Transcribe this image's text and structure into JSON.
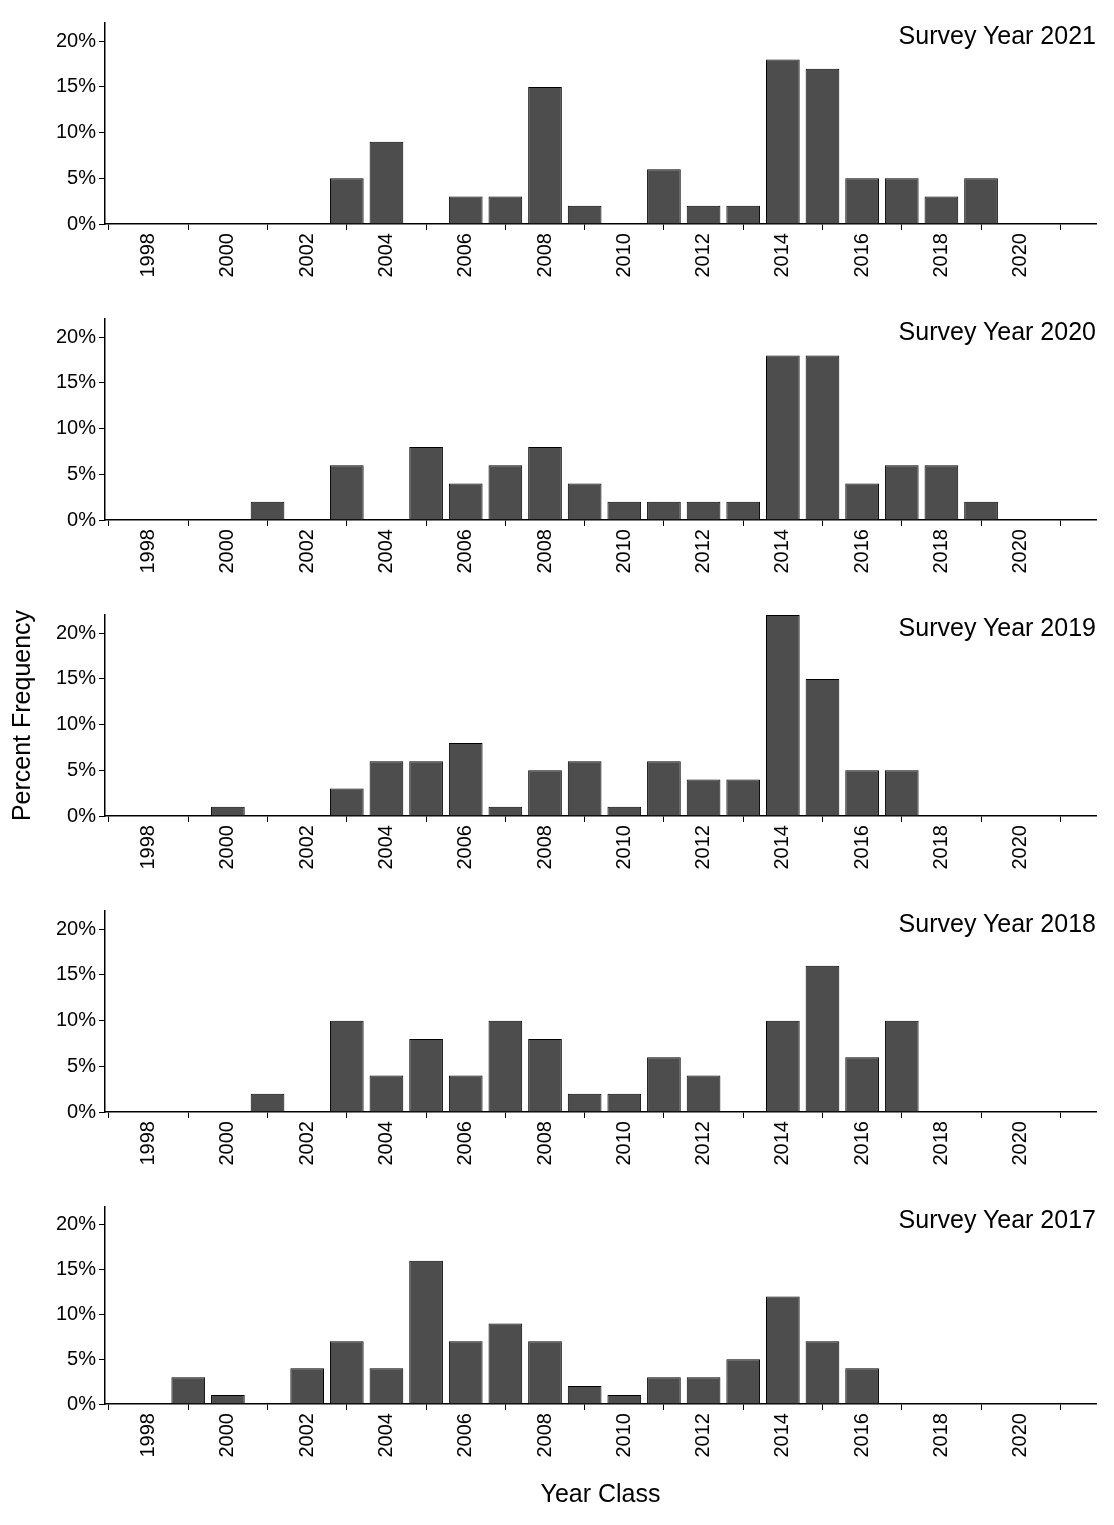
{
  "chart_data": [
    {
      "type": "bar",
      "title": "Survey Year 2021",
      "x": [
        2003,
        2004,
        2006,
        2007,
        2008,
        2009,
        2011,
        2012,
        2013,
        2014,
        2015,
        2016,
        2017,
        2018,
        2019
      ],
      "values": [
        5,
        9,
        3,
        3,
        15,
        2,
        6,
        2,
        2,
        18,
        17,
        5,
        5,
        3,
        5
      ],
      "color": "#4d4d4d",
      "xlim": [
        1996.9,
        2021.9
      ],
      "xticks": [
        1998,
        2000,
        2002,
        2004,
        2006,
        2008,
        2010,
        2012,
        2014,
        2016,
        2018,
        2020
      ],
      "ylim": [
        0,
        22
      ],
      "yticks": [
        {
          "value": 0,
          "label": "0%"
        },
        {
          "value": 5,
          "label": "5%"
        },
        {
          "value": 10,
          "label": "10%"
        },
        {
          "value": 15,
          "label": "15%"
        },
        {
          "value": 20,
          "label": "20%"
        }
      ]
    },
    {
      "type": "bar",
      "title": "Survey Year 2020",
      "x": [
        2001,
        2003,
        2005,
        2006,
        2007,
        2008,
        2009,
        2010,
        2011,
        2012,
        2013,
        2014,
        2015,
        2016,
        2017,
        2018,
        2019
      ],
      "values": [
        2,
        6,
        8,
        4,
        6,
        8,
        4,
        2,
        2,
        2,
        2,
        18,
        18,
        4,
        6,
        6,
        2
      ],
      "color": "#4d4d4d",
      "xlim": [
        1996.9,
        2021.9
      ],
      "xticks": [
        1998,
        2000,
        2002,
        2004,
        2006,
        2008,
        2010,
        2012,
        2014,
        2016,
        2018,
        2020
      ],
      "ylim": [
        0,
        22
      ],
      "yticks": [
        {
          "value": 0,
          "label": "0%"
        },
        {
          "value": 5,
          "label": "5%"
        },
        {
          "value": 10,
          "label": "10%"
        },
        {
          "value": 15,
          "label": "15%"
        },
        {
          "value": 20,
          "label": "20%"
        }
      ]
    },
    {
      "type": "bar",
      "title": "Survey Year 2019",
      "ylabel": "Percent Frequency",
      "x": [
        2000,
        2003,
        2004,
        2005,
        2006,
        2007,
        2008,
        2009,
        2010,
        2011,
        2012,
        2013,
        2014,
        2015,
        2016,
        2017
      ],
      "values": [
        1,
        3,
        6,
        6,
        8,
        1,
        5,
        6,
        1,
        6,
        4,
        4,
        22,
        15,
        5,
        5
      ],
      "color": "#4d4d4d",
      "xlim": [
        1996.9,
        2021.9
      ],
      "xticks": [
        1998,
        2000,
        2002,
        2004,
        2006,
        2008,
        2010,
        2012,
        2014,
        2016,
        2018,
        2020
      ],
      "ylim": [
        0,
        22
      ],
      "yticks": [
        {
          "value": 0,
          "label": "0%"
        },
        {
          "value": 5,
          "label": "5%"
        },
        {
          "value": 10,
          "label": "10%"
        },
        {
          "value": 15,
          "label": "15%"
        },
        {
          "value": 20,
          "label": "20%"
        }
      ]
    },
    {
      "type": "bar",
      "title": "Survey Year 2018",
      "x": [
        2001,
        2003,
        2004,
        2005,
        2006,
        2007,
        2008,
        2009,
        2010,
        2011,
        2012,
        2014,
        2015,
        2016,
        2017
      ],
      "values": [
        2,
        10,
        4,
        8,
        4,
        10,
        8,
        2,
        2,
        6,
        4,
        10,
        16,
        6,
        10
      ],
      "color": "#4d4d4d",
      "xlim": [
        1996.9,
        2021.9
      ],
      "xticks": [
        1998,
        2000,
        2002,
        2004,
        2006,
        2008,
        2010,
        2012,
        2014,
        2016,
        2018,
        2020
      ],
      "ylim": [
        0,
        22
      ],
      "yticks": [
        {
          "value": 0,
          "label": "0%"
        },
        {
          "value": 5,
          "label": "5%"
        },
        {
          "value": 10,
          "label": "10%"
        },
        {
          "value": 15,
          "label": "15%"
        },
        {
          "value": 20,
          "label": "20%"
        }
      ]
    },
    {
      "type": "bar",
      "title": "Survey Year 2017",
      "xlabel": "Year Class",
      "x": [
        1999,
        2000,
        2002,
        2003,
        2004,
        2005,
        2006,
        2007,
        2008,
        2009,
        2010,
        2011,
        2012,
        2013,
        2014,
        2015,
        2016
      ],
      "values": [
        3,
        1,
        4,
        7,
        4,
        16,
        7,
        9,
        7,
        2,
        1,
        3,
        3,
        5,
        12,
        7,
        4
      ],
      "color": "#4d4d4d",
      "xlim": [
        1996.9,
        2021.9
      ],
      "xticks": [
        1998,
        2000,
        2002,
        2004,
        2006,
        2008,
        2010,
        2012,
        2014,
        2016,
        2018,
        2020
      ],
      "ylim": [
        0,
        22
      ],
      "yticks": [
        {
          "value": 0,
          "label": "0%"
        },
        {
          "value": 5,
          "label": "5%"
        },
        {
          "value": 10,
          "label": "10%"
        },
        {
          "value": 15,
          "label": "15%"
        },
        {
          "value": 20,
          "label": "20%"
        }
      ]
    }
  ]
}
